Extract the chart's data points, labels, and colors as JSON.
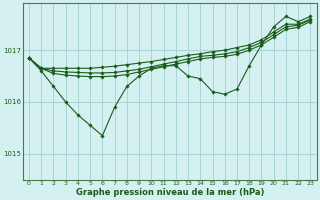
{
  "xlabel": "Graphe pression niveau de la mer (hPa)",
  "bg_color": "#d4f0f0",
  "grid_color": "#aad4d4",
  "line_color": "#1a5c1a",
  "marker_color": "#1a5c1a",
  "yticks": [
    1015,
    1016,
    1017
  ],
  "ylim": [
    1014.5,
    1017.9
  ],
  "xlim": [
    -0.5,
    23.5
  ],
  "xticks": [
    0,
    1,
    2,
    3,
    4,
    5,
    6,
    7,
    8,
    9,
    10,
    11,
    12,
    13,
    14,
    15,
    16,
    17,
    18,
    19,
    20,
    21,
    22,
    23
  ],
  "series": [
    {
      "y": [
        1016.85,
        1016.65,
        1016.65,
        1016.65,
        1016.65,
        1016.65,
        1016.67,
        1016.69,
        1016.72,
        1016.75,
        1016.78,
        1016.82,
        1016.86,
        1016.9,
        1016.93,
        1016.97,
        1017.0,
        1017.05,
        1017.1,
        1017.2,
        1017.35,
        1017.5,
        1017.5,
        1017.6
      ]
    },
    {
      "y": [
        1016.85,
        1016.65,
        1016.6,
        1016.58,
        1016.57,
        1016.56,
        1016.56,
        1016.57,
        1016.6,
        1016.63,
        1016.68,
        1016.73,
        1016.78,
        1016.83,
        1016.88,
        1016.9,
        1016.93,
        1016.97,
        1017.05,
        1017.15,
        1017.3,
        1017.45,
        1017.48,
        1017.58
      ]
    },
    {
      "y": [
        1016.85,
        1016.65,
        1016.55,
        1016.52,
        1016.5,
        1016.49,
        1016.49,
        1016.5,
        1016.53,
        1016.58,
        1016.63,
        1016.68,
        1016.73,
        1016.78,
        1016.83,
        1016.86,
        1016.88,
        1016.92,
        1017.0,
        1017.1,
        1017.25,
        1017.4,
        1017.44,
        1017.55
      ]
    },
    {
      "y": [
        1016.85,
        1016.6,
        1016.3,
        1016.0,
        1015.75,
        1015.55,
        1015.35,
        1015.9,
        1016.3,
        1016.5,
        1016.65,
        1016.7,
        1016.7,
        1016.5,
        1016.45,
        1016.2,
        1016.15,
        1016.25,
        1016.7,
        1017.1,
        1017.45,
        1017.65,
        1017.55,
        1017.65
      ]
    }
  ]
}
